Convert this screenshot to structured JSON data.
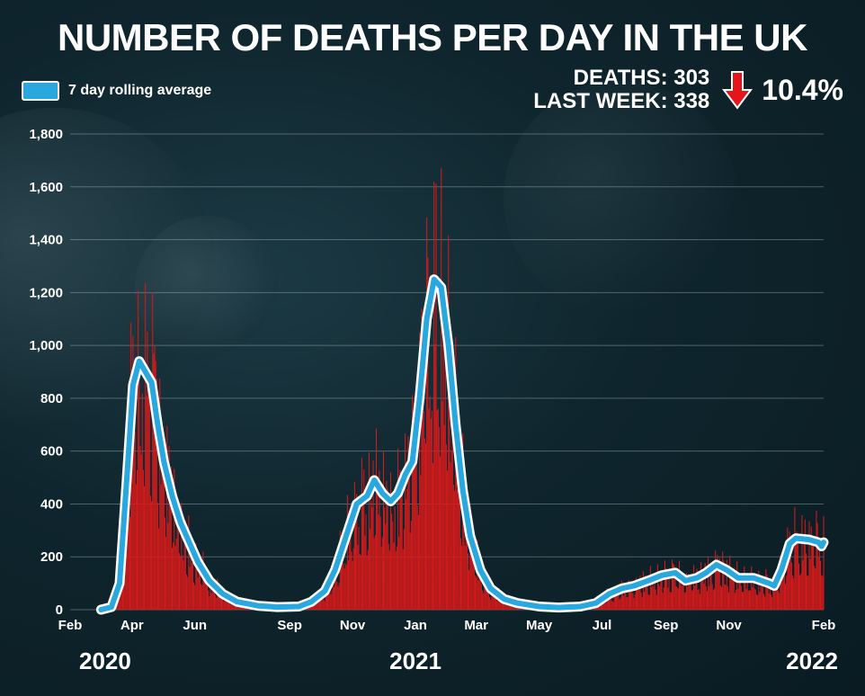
{
  "header": {
    "title": "NUMBER OF DEATHS PER DAY IN THE UK",
    "deaths_line": "DEATHS: 303",
    "last_week_line": "LAST WEEK: 338",
    "change_pct": "10.4%",
    "change_direction": "down",
    "arrow_icon": "down-arrow-icon"
  },
  "legend": {
    "label": "7 day rolling average",
    "color": "#29a8e0"
  },
  "colors": {
    "bars": "#d71a1a",
    "line": "#29a8e0",
    "line_outline": "#ffffff",
    "arrow": "#e3171b"
  },
  "chart_data": {
    "type": "bar",
    "title": "NUMBER OF DEATHS PER DAY IN THE UK",
    "xlabel": "",
    "ylabel": "",
    "ylim": [
      0,
      1800
    ],
    "yticks": [
      0,
      200,
      400,
      600,
      800,
      1000,
      1200,
      1400,
      1600,
      1800
    ],
    "ytick_labels": [
      "0",
      "200",
      "400",
      "600",
      "800",
      "1,000",
      "1,200",
      "1,400",
      "1,600",
      "1,800"
    ],
    "x_range": [
      "2020-02-01",
      "2022-02-01"
    ],
    "xtick_dates": [
      "2020-02-01",
      "2020-04-01",
      "2020-06-01",
      "2020-09-01",
      "2020-11-01",
      "2021-01-01",
      "2021-03-01",
      "2021-05-01",
      "2021-07-01",
      "2021-09-01",
      "2021-11-01",
      "2022-02-01"
    ],
    "xtick_labels": [
      "Feb",
      "Apr",
      "Jun",
      "Sep",
      "Nov",
      "Jan",
      "Mar",
      "May",
      "Jul",
      "Sep",
      "Nov",
      "Feb"
    ],
    "year_labels": [
      {
        "date": "2020-02-01",
        "label": "2020"
      },
      {
        "date": "2021-01-01",
        "label": "2021"
      },
      {
        "date": "2022-02-01",
        "label": "2022"
      }
    ],
    "grid": true,
    "legend_position": "top-left",
    "series": [
      {
        "name": "7 day rolling average",
        "type": "line",
        "points": [
          [
            "2020-03-02",
            0
          ],
          [
            "2020-03-12",
            10
          ],
          [
            "2020-03-20",
            100
          ],
          [
            "2020-03-27",
            500
          ],
          [
            "2020-04-02",
            850
          ],
          [
            "2020-04-08",
            940
          ],
          [
            "2020-04-14",
            900
          ],
          [
            "2020-04-20",
            860
          ],
          [
            "2020-04-26",
            700
          ],
          [
            "2020-05-02",
            560
          ],
          [
            "2020-05-10",
            430
          ],
          [
            "2020-05-18",
            330
          ],
          [
            "2020-05-26",
            260
          ],
          [
            "2020-06-04",
            180
          ],
          [
            "2020-06-15",
            110
          ],
          [
            "2020-06-28",
            60
          ],
          [
            "2020-07-12",
            30
          ],
          [
            "2020-08-01",
            15
          ],
          [
            "2020-08-20",
            10
          ],
          [
            "2020-09-10",
            12
          ],
          [
            "2020-09-22",
            30
          ],
          [
            "2020-10-05",
            70
          ],
          [
            "2020-10-15",
            150
          ],
          [
            "2020-10-25",
            270
          ],
          [
            "2020-11-05",
            400
          ],
          [
            "2020-11-15",
            430
          ],
          [
            "2020-11-22",
            490
          ],
          [
            "2020-11-30",
            440
          ],
          [
            "2020-12-08",
            410
          ],
          [
            "2020-12-15",
            440
          ],
          [
            "2020-12-22",
            510
          ],
          [
            "2020-12-29",
            560
          ],
          [
            "2021-01-05",
            800
          ],
          [
            "2021-01-12",
            1100
          ],
          [
            "2021-01-19",
            1250
          ],
          [
            "2021-01-26",
            1220
          ],
          [
            "2021-02-02",
            1000
          ],
          [
            "2021-02-09",
            700
          ],
          [
            "2021-02-16",
            450
          ],
          [
            "2021-02-23",
            280
          ],
          [
            "2021-03-05",
            150
          ],
          [
            "2021-03-15",
            80
          ],
          [
            "2021-03-28",
            40
          ],
          [
            "2021-04-10",
            25
          ],
          [
            "2021-05-01",
            12
          ],
          [
            "2021-05-20",
            8
          ],
          [
            "2021-06-10",
            12
          ],
          [
            "2021-06-25",
            25
          ],
          [
            "2021-07-08",
            60
          ],
          [
            "2021-07-20",
            80
          ],
          [
            "2021-08-01",
            90
          ],
          [
            "2021-08-15",
            110
          ],
          [
            "2021-08-28",
            130
          ],
          [
            "2021-09-10",
            140
          ],
          [
            "2021-09-20",
            110
          ],
          [
            "2021-10-01",
            120
          ],
          [
            "2021-10-10",
            140
          ],
          [
            "2021-10-20",
            170
          ],
          [
            "2021-10-30",
            150
          ],
          [
            "2021-11-10",
            120
          ],
          [
            "2021-11-25",
            120
          ],
          [
            "2021-12-10",
            100
          ],
          [
            "2021-12-15",
            90
          ],
          [
            "2021-12-22",
            150
          ],
          [
            "2021-12-30",
            250
          ],
          [
            "2022-01-05",
            270
          ],
          [
            "2022-01-18",
            265
          ],
          [
            "2022-01-27",
            255
          ],
          [
            "2022-01-30",
            240
          ],
          [
            "2022-02-01",
            255
          ]
        ]
      }
    ]
  }
}
